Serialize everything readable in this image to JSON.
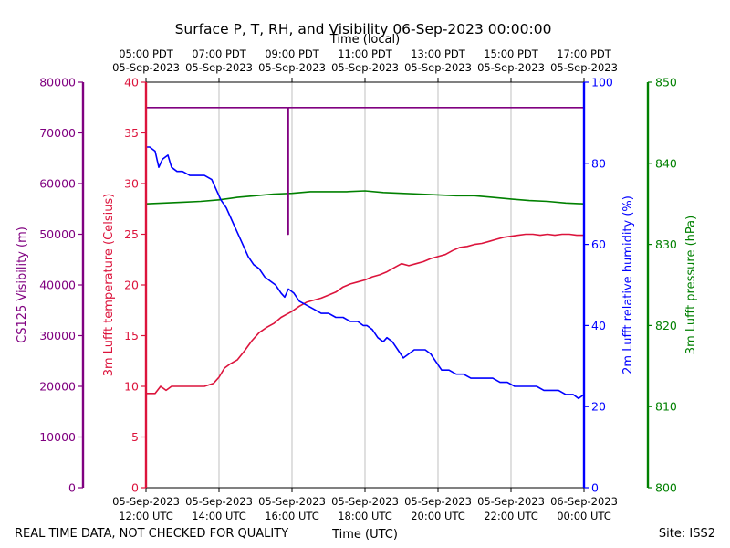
{
  "chart_data": {
    "type": "line",
    "title": "Surface P, T, RH, and Visibility 06-Sep-2023 00:00:00",
    "top_xlabel": "Time (local)",
    "bottom_xlabel": "Time (UTC)",
    "footer_left": "REAL TIME DATA, NOT CHECKED FOR QUALITY",
    "footer_right": "Site: ISS2",
    "xlim_hours_utc": [
      12,
      24
    ],
    "utc_ticks": [
      {
        "hour": 12,
        "date": "05-Sep-2023",
        "time": "12:00 UTC"
      },
      {
        "hour": 14,
        "date": "05-Sep-2023",
        "time": "14:00 UTC"
      },
      {
        "hour": 16,
        "date": "05-Sep-2023",
        "time": "16:00 UTC"
      },
      {
        "hour": 18,
        "date": "05-Sep-2023",
        "time": "18:00 UTC"
      },
      {
        "hour": 20,
        "date": "05-Sep-2023",
        "time": "20:00 UTC"
      },
      {
        "hour": 22,
        "date": "05-Sep-2023",
        "time": "22:00 UTC"
      },
      {
        "hour": 24,
        "date": "06-Sep-2023",
        "time": "00:00 UTC"
      }
    ],
    "local_ticks": [
      {
        "hour": 12,
        "time": "05:00 PDT",
        "date": "05-Sep-2023"
      },
      {
        "hour": 14,
        "time": "07:00 PDT",
        "date": "05-Sep-2023"
      },
      {
        "hour": 16,
        "time": "09:00 PDT",
        "date": "05-Sep-2023"
      },
      {
        "hour": 18,
        "time": "11:00 PDT",
        "date": "05-Sep-2023"
      },
      {
        "hour": 20,
        "time": "13:00 PDT",
        "date": "05-Sep-2023"
      },
      {
        "hour": 22,
        "time": "15:00 PDT",
        "date": "05-Sep-2023"
      },
      {
        "hour": 24,
        "time": "17:00 PDT",
        "date": "05-Sep-2023"
      }
    ],
    "axes": {
      "visibility": {
        "label": "CS125 Visibility (m)",
        "ylim": [
          0,
          80000
        ],
        "ticks": [
          0,
          10000,
          20000,
          30000,
          40000,
          50000,
          60000,
          70000,
          80000
        ],
        "color": "#800080"
      },
      "temperature": {
        "label": "3m Lufft temperature (Celsius)",
        "ylim": [
          0,
          40
        ],
        "ticks": [
          0,
          5,
          10,
          15,
          20,
          25,
          30,
          35,
          40
        ],
        "color": "#dc143c"
      },
      "humidity": {
        "label": "2m Lufft relative humidity (%)",
        "ylim": [
          0,
          100
        ],
        "ticks": [
          0,
          20,
          40,
          60,
          80,
          100
        ],
        "color": "#0000ff"
      },
      "pressure": {
        "label": "3m Lufft pressure (hPa)",
        "ylim": [
          800,
          850
        ],
        "ticks": [
          800,
          810,
          820,
          830,
          840,
          850
        ],
        "color": "#008000"
      }
    },
    "series": [
      {
        "name": "Visibility",
        "axis": "visibility",
        "color": "#800080",
        "x": [
          12.0,
          15.88,
          15.88,
          15.9,
          15.9,
          24.0
        ],
        "values": [
          75000,
          75000,
          50000,
          50000,
          75000,
          75000
        ]
      },
      {
        "name": "Temperature",
        "axis": "temperature",
        "color": "#dc143c",
        "x": [
          12.0,
          12.25,
          12.4,
          12.55,
          12.7,
          12.85,
          13.0,
          13.3,
          13.6,
          13.85,
          14.0,
          14.15,
          14.3,
          14.5,
          14.7,
          14.9,
          15.1,
          15.3,
          15.5,
          15.7,
          15.85,
          16.0,
          16.2,
          16.4,
          16.6,
          16.8,
          17.0,
          17.2,
          17.4,
          17.6,
          17.8,
          18.0,
          18.2,
          18.4,
          18.6,
          18.8,
          19.0,
          19.2,
          19.4,
          19.6,
          19.8,
          20.0,
          20.2,
          20.4,
          20.6,
          20.8,
          21.0,
          21.2,
          21.4,
          21.6,
          21.8,
          22.0,
          22.2,
          22.4,
          22.6,
          22.8,
          23.0,
          23.2,
          23.4,
          23.6,
          23.8,
          24.0
        ],
        "values": [
          9.3,
          9.3,
          10.0,
          9.6,
          10.0,
          10.0,
          10.0,
          10.0,
          10.0,
          10.3,
          10.9,
          11.8,
          12.2,
          12.6,
          13.5,
          14.5,
          15.3,
          15.8,
          16.2,
          16.8,
          17.1,
          17.4,
          17.9,
          18.3,
          18.5,
          18.7,
          19.0,
          19.3,
          19.8,
          20.1,
          20.3,
          20.5,
          20.8,
          21.0,
          21.3,
          21.7,
          22.1,
          21.9,
          22.1,
          22.3,
          22.6,
          22.8,
          23.0,
          23.4,
          23.7,
          23.8,
          24.0,
          24.1,
          24.3,
          24.5,
          24.7,
          24.8,
          24.9,
          25.0,
          25.0,
          24.9,
          25.0,
          24.9,
          25.0,
          25.0,
          24.9,
          24.9
        ]
      },
      {
        "name": "Relative humidity",
        "axis": "humidity",
        "color": "#0000ff",
        "x": [
          12.0,
          12.1,
          12.25,
          12.35,
          12.45,
          12.6,
          12.7,
          12.85,
          13.0,
          13.2,
          13.4,
          13.6,
          13.8,
          13.95,
          14.05,
          14.2,
          14.35,
          14.5,
          14.65,
          14.8,
          14.95,
          15.1,
          15.25,
          15.4,
          15.55,
          15.7,
          15.8,
          15.9,
          16.05,
          16.2,
          16.4,
          16.6,
          16.8,
          17.0,
          17.2,
          17.4,
          17.6,
          17.8,
          17.95,
          18.05,
          18.2,
          18.35,
          18.5,
          18.6,
          18.75,
          18.9,
          19.05,
          19.2,
          19.35,
          19.5,
          19.65,
          19.8,
          19.95,
          20.1,
          20.3,
          20.5,
          20.7,
          20.9,
          21.1,
          21.3,
          21.5,
          21.7,
          21.9,
          22.1,
          22.3,
          22.5,
          22.7,
          22.9,
          23.1,
          23.3,
          23.5,
          23.7,
          23.85,
          24.0
        ],
        "values": [
          84,
          84,
          83,
          79,
          81,
          82,
          79,
          78,
          78,
          77,
          77,
          77,
          76,
          73,
          71,
          69,
          66,
          63,
          60,
          57,
          55,
          54,
          52,
          51,
          50,
          48,
          47,
          49,
          48,
          46,
          45,
          44,
          43,
          43,
          42,
          42,
          41,
          41,
          40,
          40,
          39,
          37,
          36,
          37,
          36,
          34,
          32,
          33,
          34,
          34,
          34,
          33,
          31,
          29,
          29,
          28,
          28,
          27,
          27,
          27,
          27,
          26,
          26,
          25,
          25,
          25,
          25,
          24,
          24,
          24,
          23,
          23,
          22,
          23
        ]
      },
      {
        "name": "Pressure",
        "axis": "pressure",
        "color": "#008000",
        "x": [
          12.0,
          12.5,
          13.0,
          13.5,
          14.0,
          14.5,
          15.0,
          15.5,
          16.0,
          16.5,
          17.0,
          17.5,
          18.0,
          18.5,
          19.0,
          19.5,
          20.0,
          20.5,
          21.0,
          21.5,
          22.0,
          22.5,
          23.0,
          23.5,
          24.0
        ],
        "values": [
          835.0,
          835.1,
          835.2,
          835.3,
          835.5,
          835.8,
          836.0,
          836.2,
          836.3,
          836.5,
          836.5,
          836.5,
          836.6,
          836.4,
          836.3,
          836.2,
          836.1,
          836.0,
          836.0,
          835.8,
          835.6,
          835.4,
          835.3,
          835.1,
          835.0
        ]
      }
    ]
  }
}
